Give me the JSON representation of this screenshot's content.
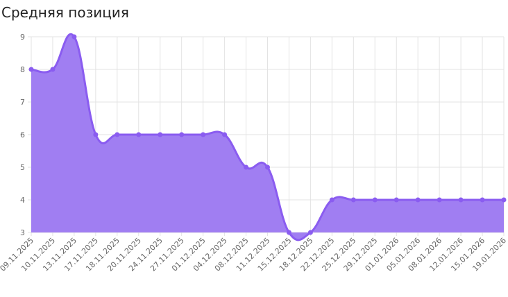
{
  "chart_data": {
    "type": "area",
    "title": "Средняя позиция",
    "xlabel": "",
    "ylabel": "",
    "ylim": [
      3,
      9
    ],
    "yticks": [
      3,
      4,
      5,
      6,
      7,
      8,
      9
    ],
    "grid": true,
    "legend": "none",
    "categories": [
      "09.11.2025",
      "10.11.2025",
      "13.11.2025",
      "17.11.2025",
      "18.11.2025",
      "20.11.2025",
      "24.11.2025",
      "27.11.2025",
      "01.12.2025",
      "04.12.2025",
      "08.12.2025",
      "11.12.2025",
      "15.12.2025",
      "18.12.2025",
      "22.12.2025",
      "25.12.2025",
      "29.12.2025",
      "01.01.2026",
      "05.01.2026",
      "08.01.2026",
      "12.01.2026",
      "15.01.2026",
      "19.01.2026"
    ],
    "series": [
      {
        "values": [
          8,
          8,
          9,
          6,
          6,
          6,
          6,
          6,
          6,
          6,
          5,
          5,
          3,
          3,
          4,
          4,
          4,
          4,
          4,
          4,
          4,
          4,
          4
        ]
      }
    ],
    "colors": {
      "fill": "#a07ef2",
      "line": "#8a5cf0",
      "point": "#8a5cf0",
      "grid": "#e3e3e3",
      "tick_text": "#666666"
    }
  }
}
